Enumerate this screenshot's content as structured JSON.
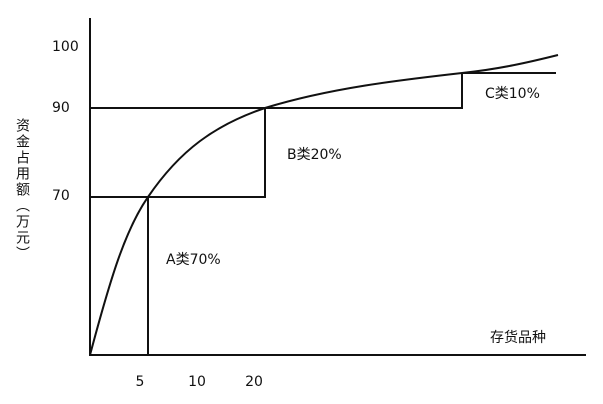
{
  "y_axis": {
    "label": "资金占用额（万元）",
    "ticks": [
      "100",
      "90",
      "70"
    ]
  },
  "x_axis": {
    "label": "存货品种",
    "ticks": [
      "5",
      "10",
      "20"
    ]
  },
  "regions": [
    "A类70%",
    "B类20%",
    "C类10%"
  ]
}
